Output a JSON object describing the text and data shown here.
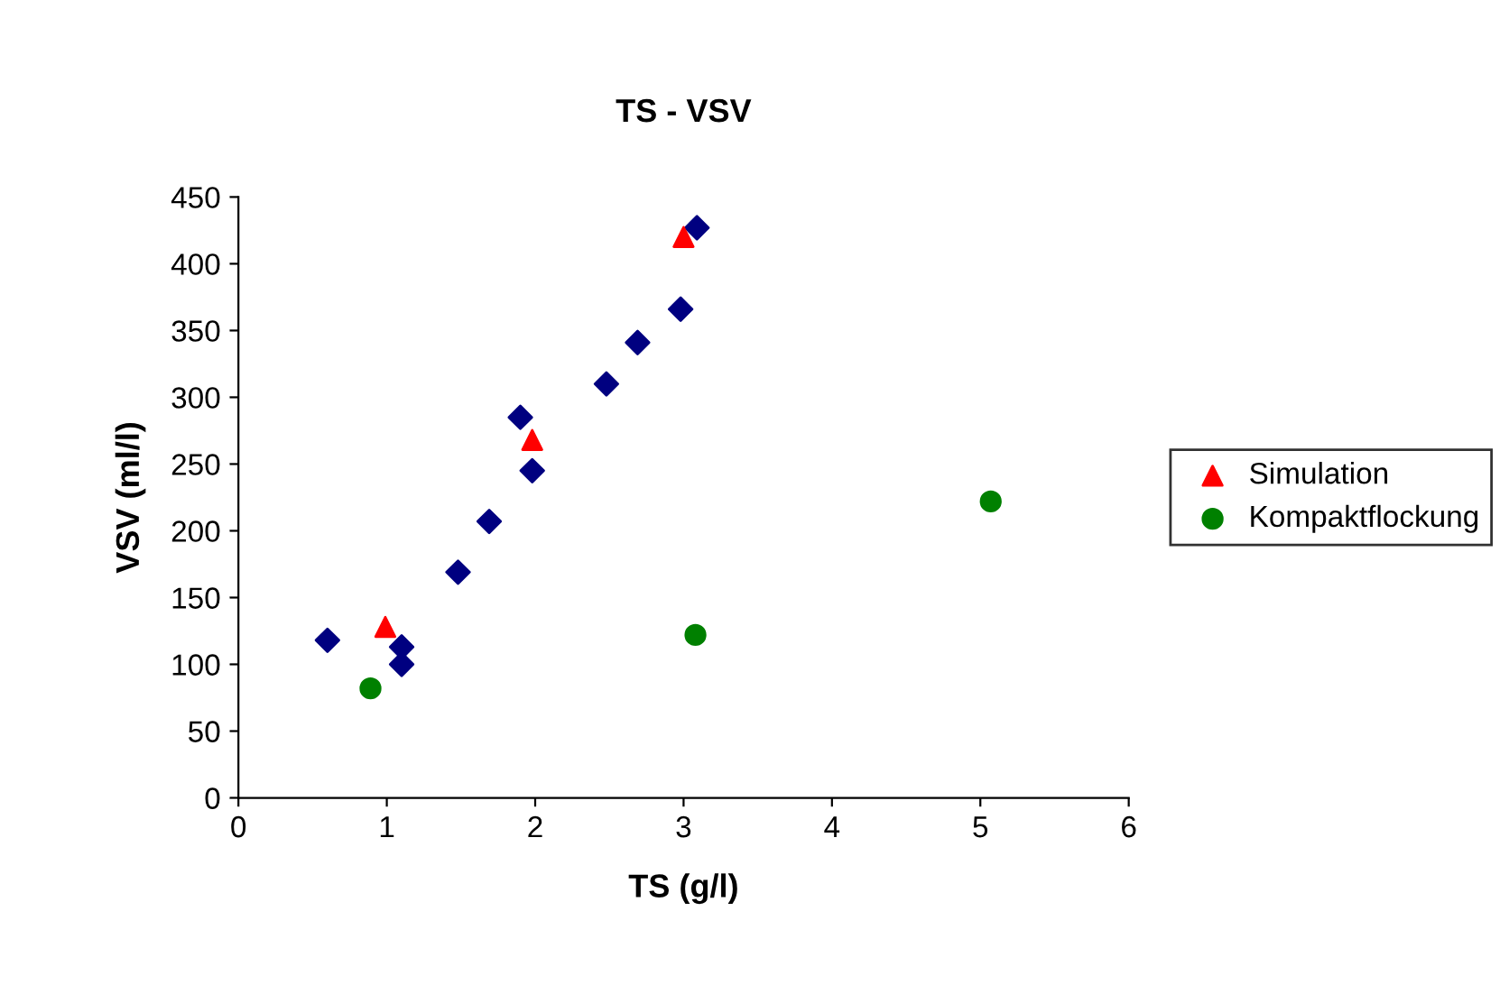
{
  "chart_data": {
    "type": "scatter",
    "title": "TS - VSV",
    "xlabel": "TS (g/l)",
    "ylabel": "VSV (ml/l)",
    "xlim": [
      0,
      6
    ],
    "xticks": [
      0,
      1,
      2,
      3,
      4,
      5,
      6
    ],
    "ylim": [
      0,
      450
    ],
    "yticks": [
      0,
      50,
      100,
      150,
      200,
      250,
      300,
      350,
      400,
      450
    ],
    "grid": false,
    "legend": "right",
    "series": [
      {
        "color": "#000080",
        "marker": "diamond",
        "x": [
          0.6,
          1.1,
          1.1,
          1.48,
          1.69,
          1.9,
          1.98,
          2.48,
          2.69,
          2.98,
          3.09
        ],
        "values": [
          118,
          113,
          100,
          169,
          207,
          285,
          245,
          310,
          341,
          366,
          427
        ]
      },
      {
        "name": "Simulation",
        "color": "#ff0000",
        "marker": "triangle",
        "x": [
          0.99,
          1.98,
          3.0
        ],
        "values": [
          128,
          268,
          420
        ]
      },
      {
        "name": "Kompaktflockung",
        "color": "#008000",
        "marker": "circle",
        "x": [
          0.89,
          3.08,
          5.07
        ],
        "values": [
          82,
          122,
          222
        ]
      }
    ]
  }
}
